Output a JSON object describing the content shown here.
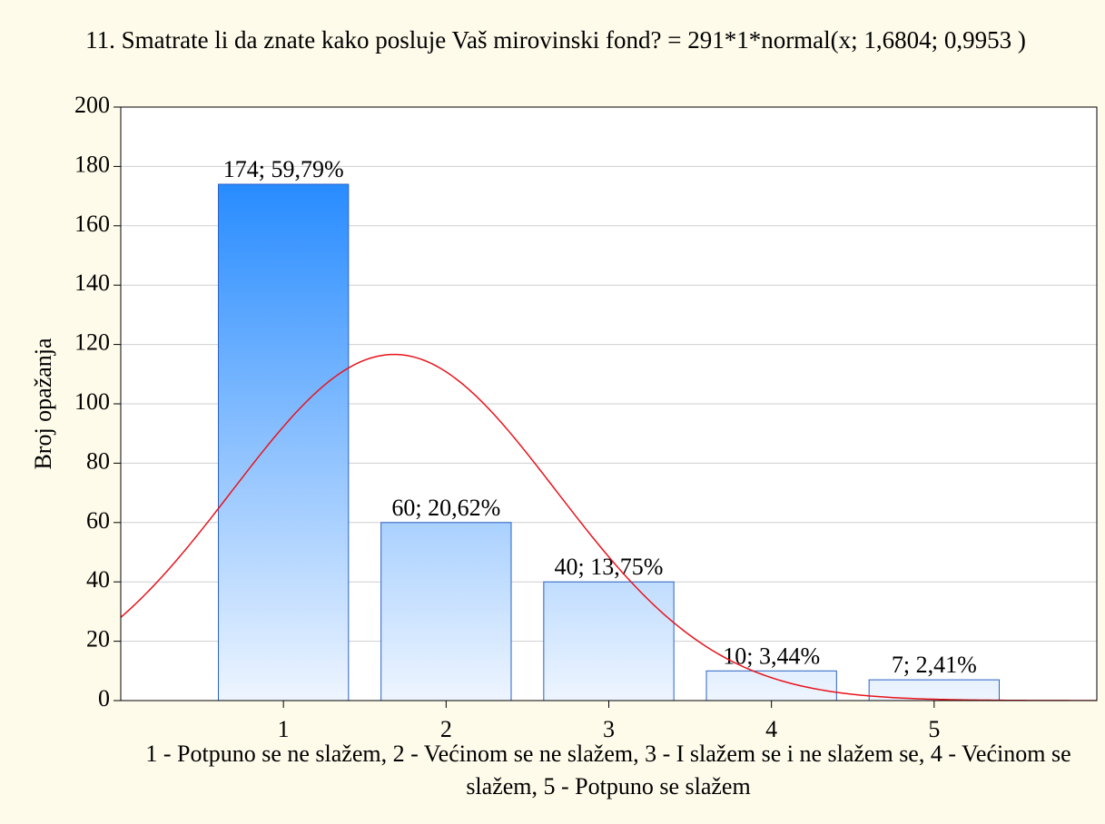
{
  "chart_data": {
    "type": "bar",
    "title": "11. Smatrate li da znate kako posluje Vaš mirovinski fond? = 291*1*normal(x; 1,6804; 0,9953 )",
    "x_label": "1 - Potpuno se ne slažem, 2 - Većinom se ne slažem, 3 - I slažem se i ne slažem se, 4 - Većinom se slažem, 5 - Potpuno se slažem",
    "y_label": "Broj opažanja",
    "x": [
      1,
      2,
      3,
      4,
      5
    ],
    "values": [
      174,
      60,
      40,
      10,
      7
    ],
    "value_labels": [
      "174; 59,79%",
      "60; 20,62%",
      "40; 13,75%",
      "10; 3,44%",
      "7; 2,41%"
    ],
    "fit": {
      "n": 291,
      "scale": 1,
      "mean": 1.6804,
      "sd": 0.9953,
      "color": "#e8141c"
    },
    "colors": [
      "#0a7cff",
      "#eef5ff"
    ],
    "xlim": [
      0,
      6
    ],
    "xticks": [
      1,
      2,
      3,
      4,
      5
    ],
    "ylim": [
      0,
      200
    ],
    "yticks": [
      0,
      20,
      40,
      60,
      80,
      100,
      120,
      140,
      160,
      180,
      200
    ],
    "grid": true
  }
}
